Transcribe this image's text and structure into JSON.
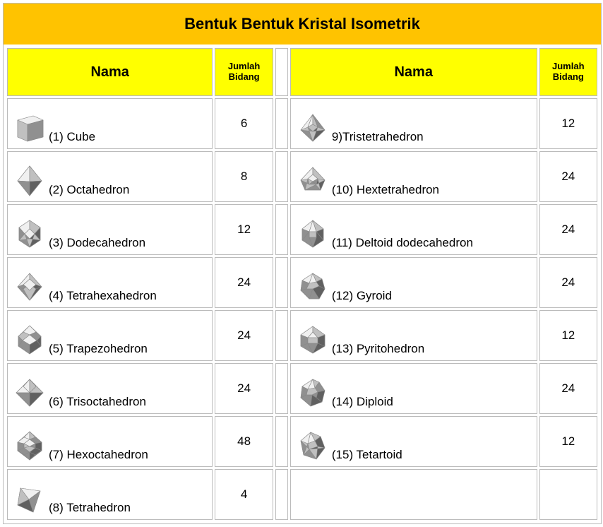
{
  "title": "Bentuk Bentuk Kristal Isometrik",
  "colors": {
    "title_bg": "#ffc300",
    "header_bg": "#ffff00",
    "border": "#bbbbbb",
    "background": "#ffffff",
    "text": "#000000",
    "shape_light": "#f0f0f0",
    "shape_mid": "#c0c0c0",
    "shape_midlow": "#909090",
    "shape_dark": "#606060",
    "shape_stroke": "#888888"
  },
  "table": {
    "type": "table",
    "columns": {
      "name_label": "Nama",
      "faces_label": "Jumlah Bidang"
    },
    "left": [
      {
        "label": "(1) Cube",
        "faces": "6",
        "shape": "cube"
      },
      {
        "label": "(2) Octahedron",
        "faces": "8",
        "shape": "octa"
      },
      {
        "label": "(3) Dodecahedron",
        "faces": "12",
        "shape": "dodec"
      },
      {
        "label": "(4) Tetrahexahedron",
        "faces": "24",
        "shape": "tetrahex"
      },
      {
        "label": "(5) Trapezohedron",
        "faces": "24",
        "shape": "trapez"
      },
      {
        "label": "(6) Trisoctahedron",
        "faces": "24",
        "shape": "trisocta"
      },
      {
        "label": "(7) Hexoctahedron",
        "faces": "48",
        "shape": "hexocta"
      },
      {
        "label": "(8) Tetrahedron",
        "faces": "4",
        "shape": "tetra"
      }
    ],
    "right": [
      {
        "label": "9)Tristetrahedron",
        "faces": "12",
        "shape": "tristetra"
      },
      {
        "label": "(10) Hextetrahedron",
        "faces": "24",
        "shape": "hextetra"
      },
      {
        "label": "(11) Deltoid dodecahedron",
        "faces": "24",
        "shape": "deltoid"
      },
      {
        "label": "(12) Gyroid",
        "faces": "24",
        "shape": "gyroid"
      },
      {
        "label": "(13) Pyritohedron",
        "faces": "12",
        "shape": "pyrito"
      },
      {
        "label": "(14) Diploid",
        "faces": "24",
        "shape": "diploid"
      },
      {
        "label": "(15) Tetartoid",
        "faces": "12",
        "shape": "tetartoid"
      }
    ]
  },
  "typography": {
    "title_fontsize": 22,
    "header_name_fontsize": 20,
    "header_faces_fontsize": 13,
    "body_fontsize": 17
  }
}
